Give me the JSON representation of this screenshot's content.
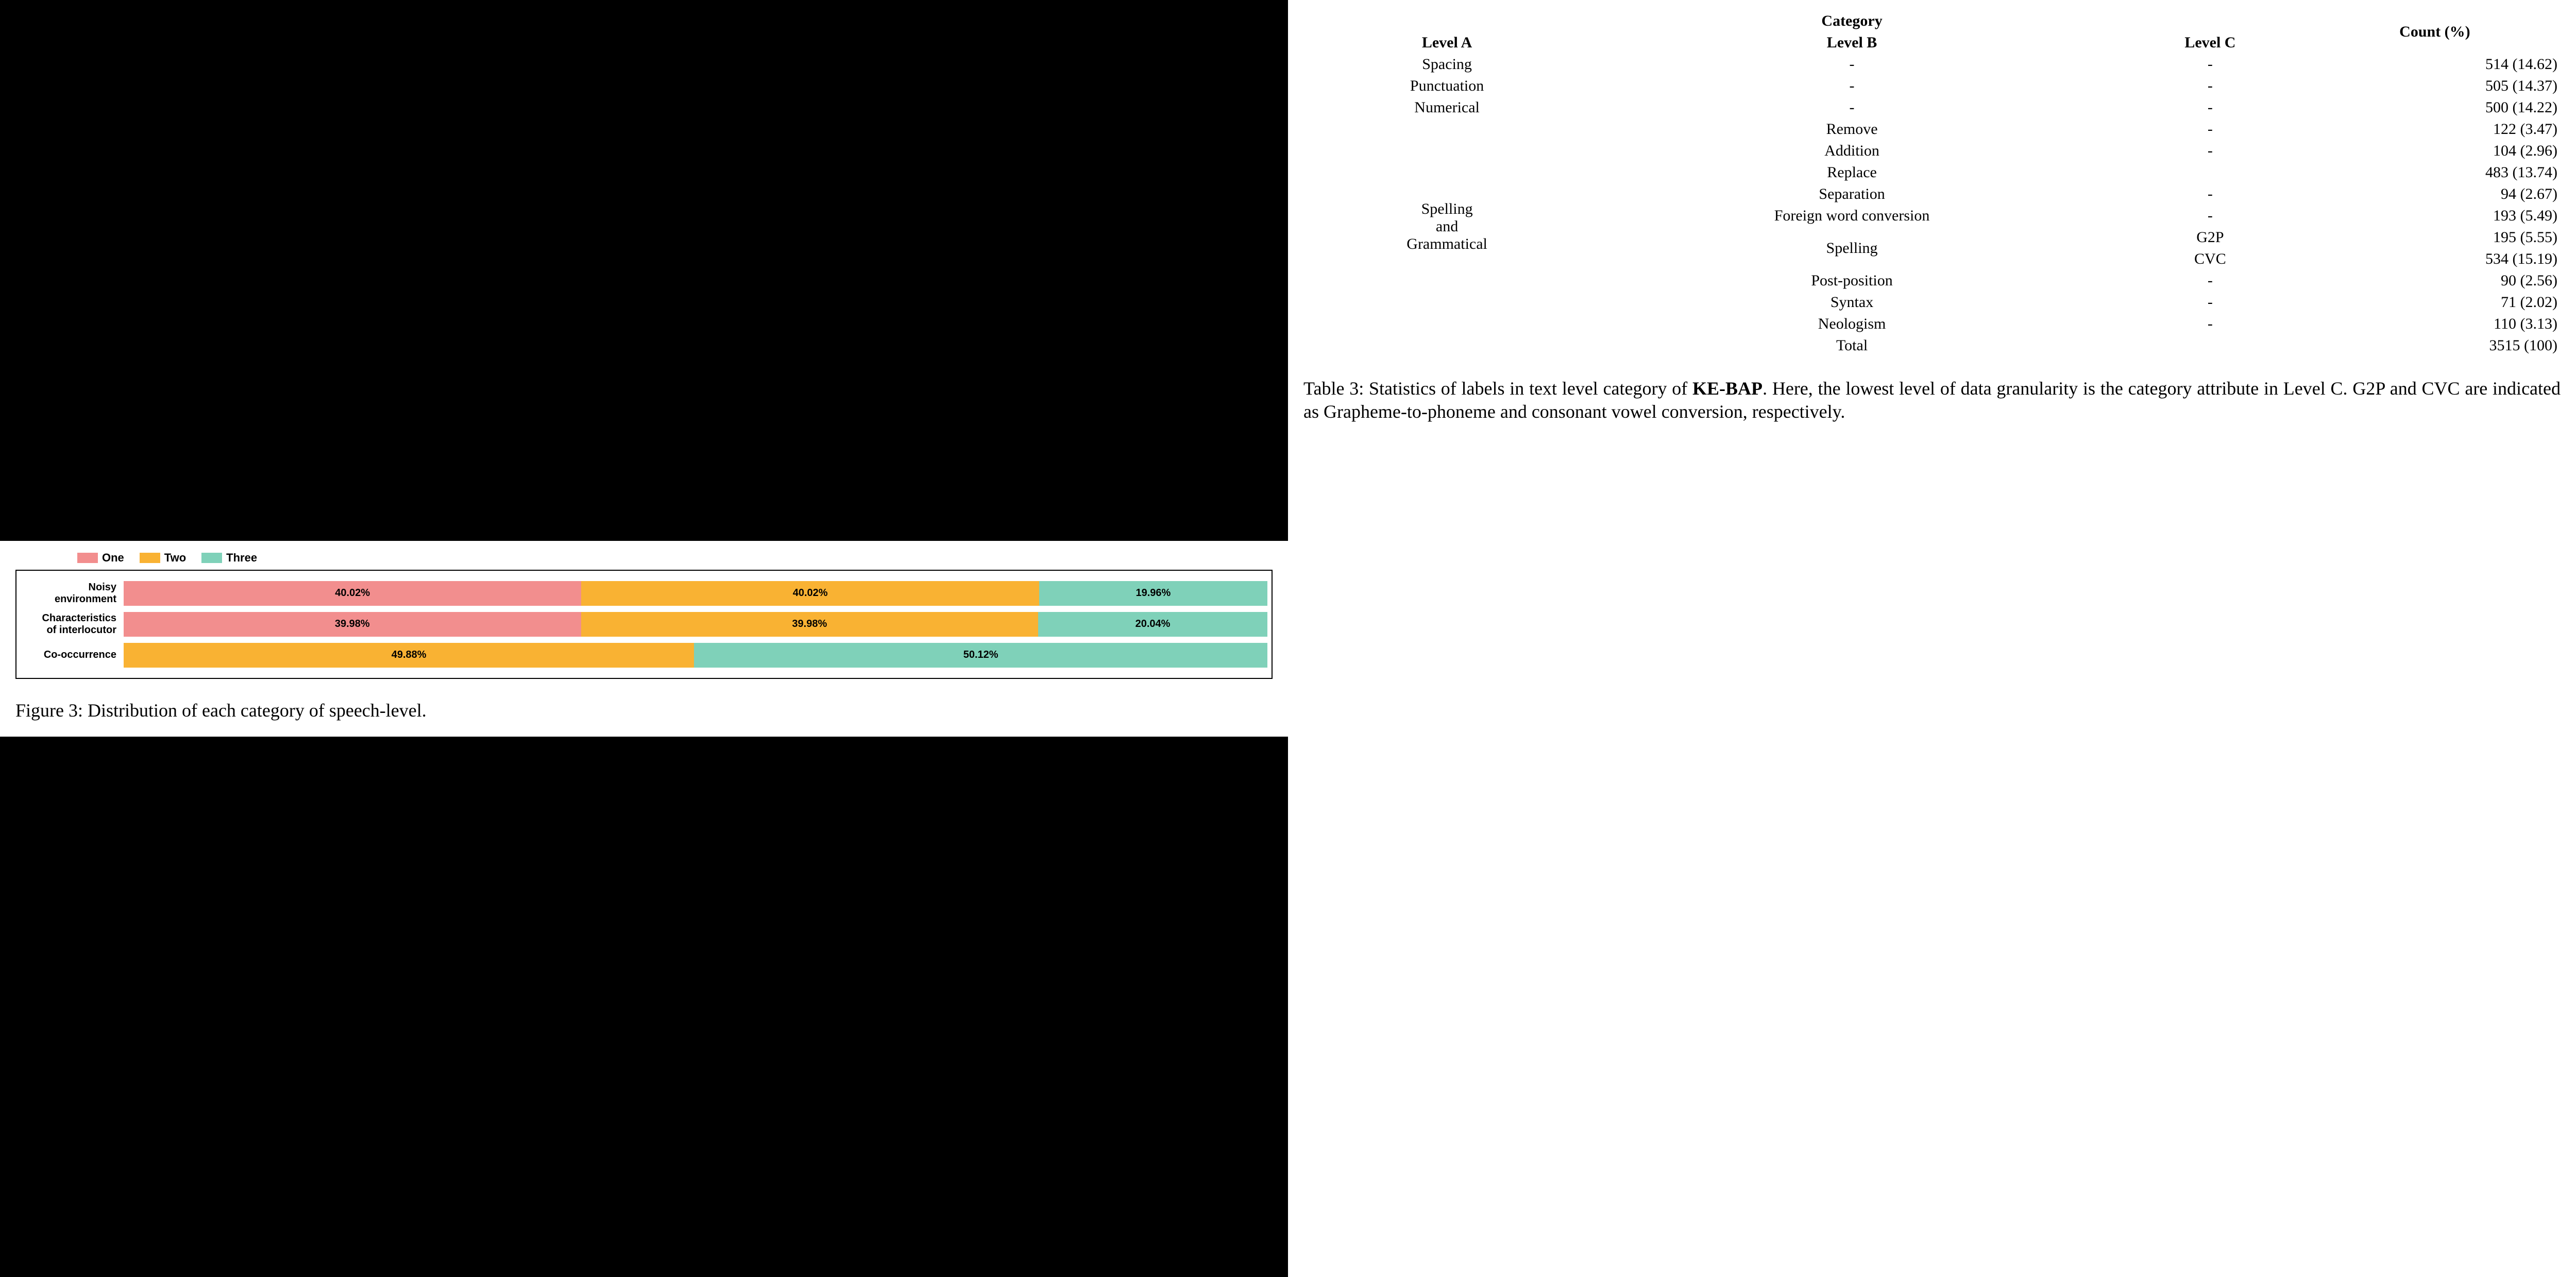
{
  "chart": {
    "type": "stacked-horizontal-bar",
    "legend": [
      {
        "label": "One",
        "color": "#f28e8e"
      },
      {
        "label": "Two",
        "color": "#f9b233"
      },
      {
        "label": "Three",
        "color": "#7fd1b9"
      }
    ],
    "background_color": "#ffffff",
    "border_color": "#000000",
    "label_font": "Arial",
    "label_fontsize": 20,
    "segment_fontsize": 20,
    "rows": [
      {
        "label": "Noisy\nenvironment",
        "segments": [
          {
            "value": 40.02,
            "text": "40.02%",
            "color": "#f28e8e"
          },
          {
            "value": 40.02,
            "text": "40.02%",
            "color": "#f9b233"
          },
          {
            "value": 19.96,
            "text": "19.96%",
            "color": "#7fd1b9"
          }
        ]
      },
      {
        "label": "Characteristics\nof interlocutor",
        "segments": [
          {
            "value": 39.98,
            "text": "39.98%",
            "color": "#f28e8e"
          },
          {
            "value": 39.98,
            "text": "39.98%",
            "color": "#f9b233"
          },
          {
            "value": 20.04,
            "text": "20.04%",
            "color": "#7fd1b9"
          }
        ]
      },
      {
        "label": "Co-occurrence",
        "segments": [
          {
            "value": 49.88,
            "text": "49.88%",
            "color": "#f9b233"
          },
          {
            "value": 50.12,
            "text": "50.12%",
            "color": "#7fd1b9"
          }
        ]
      }
    ],
    "caption": "Figure 3: Distribution of each category of speech-level."
  },
  "table": {
    "header": {
      "category": "Category",
      "levelA": "Level A",
      "levelB": "Level B",
      "levelC": "Level C",
      "count": "Count (%)"
    },
    "groups": [
      {
        "levelA": "Spacing",
        "rows": [
          {
            "levelB": "-",
            "levelC": "-",
            "count": "514 (14.62)"
          }
        ]
      },
      {
        "levelA": "Punctuation",
        "rows": [
          {
            "levelB": "-",
            "levelC": "-",
            "count": "505 (14.37)"
          }
        ]
      },
      {
        "levelA": "Numerical",
        "rows": [
          {
            "levelB": "-",
            "levelC": "-",
            "count": "500 (14.22)"
          }
        ]
      },
      {
        "levelA": "Spelling\nand\nGrammatical",
        "rows": [
          {
            "levelB": "Remove",
            "levelC": "-",
            "count": "122 (3.47)"
          },
          {
            "levelB": "Addition",
            "levelC": "-",
            "count": "104 (2.96)"
          },
          {
            "levelB": "Replace",
            "levelC": "",
            "count": "483 (13.74)"
          },
          {
            "levelB": "Separation",
            "levelC": "-",
            "count": "94 (2.67)"
          },
          {
            "levelB": "Foreign word conversion",
            "levelC": "-",
            "count": "193 (5.49)"
          },
          {
            "levelB": "Spelling",
            "levelC": "G2P",
            "count": "195 (5.55)",
            "sub": true
          },
          {
            "levelB": "",
            "levelC": "CVC",
            "count": "534 (15.19)",
            "subcont": true
          },
          {
            "levelB": "Post-position",
            "levelC": "-",
            "count": "90 (2.56)"
          },
          {
            "levelB": "Syntax",
            "levelC": "-",
            "count": "71 (2.02)"
          },
          {
            "levelB": "Neologism",
            "levelC": "-",
            "count": "110 (3.13)"
          }
        ]
      }
    ],
    "total": {
      "label": "Total",
      "count": "3515 (100)"
    },
    "caption_pre": "Table 3: Statistics of labels in text level category of ",
    "caption_bold": "KE-BAP",
    "caption_post": ". Here, the lowest level of data granularity is the category attribute in Level C. G2P and CVC are indicated as Grapheme-to-phoneme and consonant vowel conversion, respectively."
  }
}
